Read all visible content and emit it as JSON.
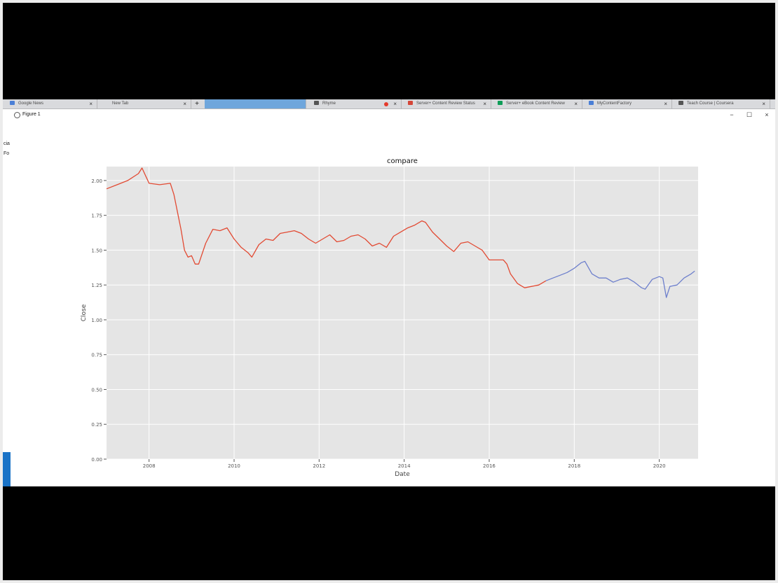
{
  "browser": {
    "tabs": [
      {
        "label": "Google News",
        "icon_color": "#4a7fd6"
      },
      {
        "label": "New Tab",
        "icon_color": "#ffffff"
      },
      {
        "label": "",
        "icon_color": "#ffffff",
        "active": true
      },
      {
        "label": "Rhyme",
        "icon_color": "#555555"
      },
      {
        "label": "Server+ Content Review Status",
        "icon_color": "#d44638"
      },
      {
        "label": "Server+ eBook Content Review",
        "icon_color": "#0f9d58"
      },
      {
        "label": "MyContentFactory",
        "icon_color": "#4a7fd6"
      },
      {
        "label": "Teach Course | Coursera",
        "icon_color": "#555555"
      }
    ],
    "sidebar_fragments": [
      "cia",
      "Fo"
    ]
  },
  "figure_window": {
    "title": "Figure 1",
    "controls": {
      "minimize": "−",
      "maximize": "☐",
      "close": "×"
    }
  },
  "chart_data": {
    "type": "line",
    "title": "compare",
    "xlabel": "Date",
    "ylabel": "Close",
    "xlim": [
      "2007-01-01",
      "2020-11-30"
    ],
    "ylim": [
      0.0,
      2.1
    ],
    "x_ticks": [
      "2008",
      "2010",
      "2012",
      "2014",
      "2016",
      "2018",
      "2020"
    ],
    "y_ticks": [
      "0.00",
      "0.25",
      "0.50",
      "0.75",
      "1.00",
      "1.25",
      "1.50",
      "1.75",
      "2.00"
    ],
    "grid": true,
    "background": "#e5e5e5",
    "series": [
      {
        "color": "#e24a33",
        "x": [
          "2007-01",
          "2007-04",
          "2007-07",
          "2007-10",
          "2007-11",
          "2008-01",
          "2008-04",
          "2008-07",
          "2008-08",
          "2008-10",
          "2008-11",
          "2008-12",
          "2009-01",
          "2009-02",
          "2009-03",
          "2009-05",
          "2009-07",
          "2009-09",
          "2009-11",
          "2010-01",
          "2010-03",
          "2010-05",
          "2010-06",
          "2010-08",
          "2010-10",
          "2010-12",
          "2011-02",
          "2011-04",
          "2011-06",
          "2011-08",
          "2011-10",
          "2011-12",
          "2012-02",
          "2012-04",
          "2012-06",
          "2012-08",
          "2012-10",
          "2012-12",
          "2013-02",
          "2013-04",
          "2013-06",
          "2013-08",
          "2013-10",
          "2013-12",
          "2014-02",
          "2014-04",
          "2014-06",
          "2014-07",
          "2014-09",
          "2014-11",
          "2015-01",
          "2015-03",
          "2015-05",
          "2015-07",
          "2015-09",
          "2015-11",
          "2016-01",
          "2016-03",
          "2016-05",
          "2016-06",
          "2016-07",
          "2016-09",
          "2016-11",
          "2017-01",
          "2017-03",
          "2017-05"
        ],
        "y": [
          1.94,
          1.97,
          2.0,
          2.05,
          2.09,
          1.98,
          1.97,
          1.98,
          1.9,
          1.65,
          1.5,
          1.45,
          1.46,
          1.4,
          1.4,
          1.55,
          1.65,
          1.64,
          1.66,
          1.58,
          1.52,
          1.48,
          1.45,
          1.54,
          1.58,
          1.57,
          1.62,
          1.63,
          1.64,
          1.62,
          1.58,
          1.55,
          1.58,
          1.61,
          1.56,
          1.57,
          1.6,
          1.61,
          1.58,
          1.53,
          1.55,
          1.52,
          1.6,
          1.63,
          1.66,
          1.68,
          1.71,
          1.7,
          1.63,
          1.58,
          1.53,
          1.49,
          1.55,
          1.56,
          1.53,
          1.5,
          1.43,
          1.43,
          1.43,
          1.4,
          1.33,
          1.26,
          1.23,
          1.24,
          1.25,
          1.28
        ]
      },
      {
        "color": "#6d7fcc",
        "x": [
          "2017-05",
          "2017-07",
          "2017-09",
          "2017-11",
          "2018-01",
          "2018-03",
          "2018-04",
          "2018-06",
          "2018-08",
          "2018-10",
          "2018-12",
          "2019-02",
          "2019-04",
          "2019-06",
          "2019-08",
          "2019-09",
          "2019-11",
          "2020-01",
          "2020-02",
          "2020-03",
          "2020-04",
          "2020-06",
          "2020-08",
          "2020-10",
          "2020-11"
        ],
        "y": [
          1.28,
          1.3,
          1.32,
          1.34,
          1.37,
          1.41,
          1.42,
          1.33,
          1.3,
          1.3,
          1.27,
          1.29,
          1.3,
          1.27,
          1.23,
          1.22,
          1.29,
          1.31,
          1.3,
          1.16,
          1.24,
          1.25,
          1.3,
          1.33,
          1.35
        ]
      }
    ]
  }
}
